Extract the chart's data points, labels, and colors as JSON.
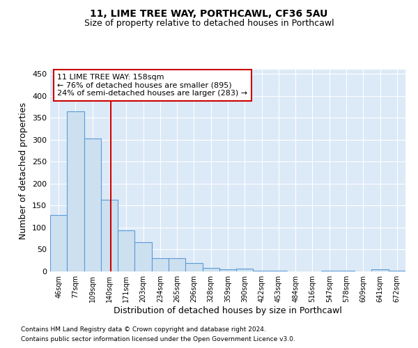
{
  "title1": "11, LIME TREE WAY, PORTHCAWL, CF36 5AU",
  "title2": "Size of property relative to detached houses in Porthcawl",
  "xlabel": "Distribution of detached houses by size in Porthcawl",
  "ylabel": "Number of detached properties",
  "footer1": "Contains HM Land Registry data © Crown copyright and database right 2024.",
  "footer2": "Contains public sector information licensed under the Open Government Licence v3.0.",
  "bin_labels": [
    "46sqm",
    "77sqm",
    "109sqm",
    "140sqm",
    "171sqm",
    "203sqm",
    "234sqm",
    "265sqm",
    "296sqm",
    "328sqm",
    "359sqm",
    "390sqm",
    "422sqm",
    "453sqm",
    "484sqm",
    "516sqm",
    "547sqm",
    "578sqm",
    "609sqm",
    "641sqm",
    "672sqm"
  ],
  "bar_heights": [
    128,
    365,
    303,
    163,
    93,
    67,
    30,
    30,
    19,
    8,
    5,
    6,
    1,
    1,
    0,
    0,
    2,
    1,
    0,
    4,
    1
  ],
  "bar_color": "#cce0f0",
  "bar_edge_color": "#5b9bd5",
  "bg_color": "#dce9f7",
  "grid_color": "#ffffff",
  "annotation_text_line1": "11 LIME TREE WAY: 158sqm",
  "annotation_text_line2": "← 76% of detached houses are smaller (895)",
  "annotation_text_line3": "24% of semi-detached houses are larger (283) →",
  "annotation_box_color": "#ffffff",
  "annotation_box_edge": "#cc0000",
  "red_line_color": "#cc0000",
  "ylim": [
    0,
    460
  ],
  "yticks": [
    0,
    50,
    100,
    150,
    200,
    250,
    300,
    350,
    400,
    450
  ],
  "num_bins": 21
}
